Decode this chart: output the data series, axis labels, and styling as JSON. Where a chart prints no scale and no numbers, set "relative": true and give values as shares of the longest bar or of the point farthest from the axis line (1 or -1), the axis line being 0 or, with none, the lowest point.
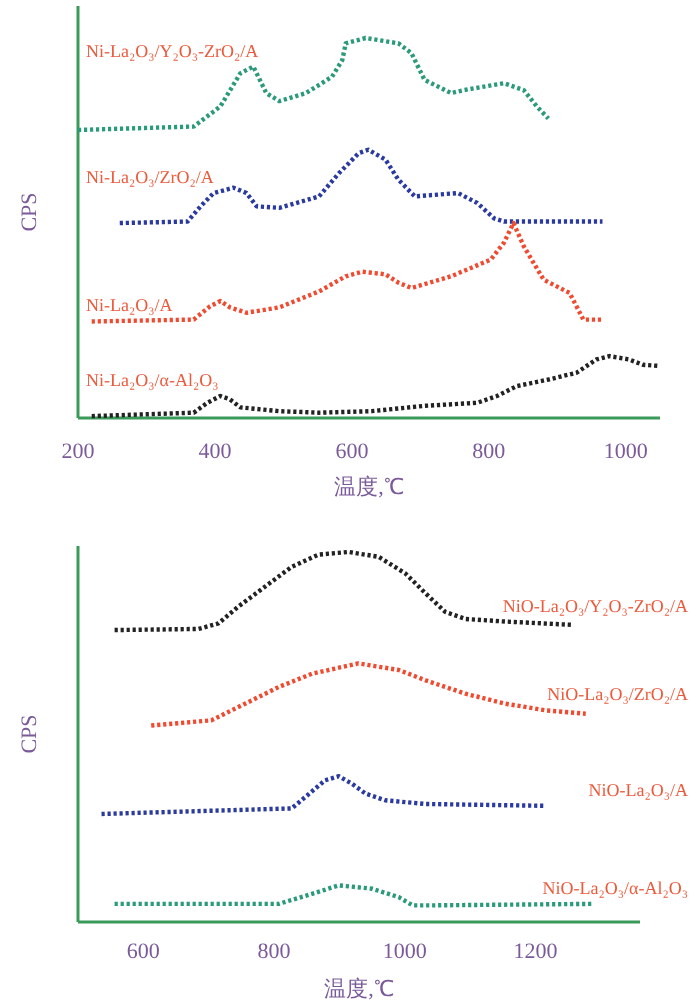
{
  "chart_data": [
    {
      "type": "line",
      "xlabel": "温度,℃",
      "ylabel": "CPS",
      "xlim": [
        200,
        1050
      ],
      "xticks": [
        200,
        400,
        600,
        800,
        1000
      ],
      "relative": true,
      "line_style": "dotted",
      "series": [
        {
          "name": "Ni-La₂O₃/Y₂O₃-ZrO₂/A",
          "color": "#2a9a7a",
          "x": [
            200,
            369,
            408,
            437,
            456,
            475,
            494,
            533,
            571,
            586,
            591,
            620,
            668,
            687,
            706,
            745,
            764,
            822,
            851,
            870,
            887
          ],
          "values": [
            0.758,
            0.767,
            0.82,
            0.907,
            0.925,
            0.855,
            0.834,
            0.855,
            0.898,
            0.942,
            0.986,
            1.0,
            0.986,
            0.96,
            0.89,
            0.855,
            0.863,
            0.881,
            0.863,
            0.82,
            0.788
          ]
        },
        {
          "name": "Ni-La₂O₃/ZrO₂/A",
          "color": "#2a3aa0",
          "x": [
            261,
            360,
            379,
            398,
            427,
            446,
            461,
            494,
            552,
            581,
            610,
            624,
            649,
            668,
            692,
            726,
            755,
            783,
            808,
            822,
            966
          ],
          "values": [
            0.513,
            0.517,
            0.557,
            0.592,
            0.606,
            0.592,
            0.557,
            0.553,
            0.583,
            0.644,
            0.697,
            0.706,
            0.68,
            0.627,
            0.583,
            0.588,
            0.592,
            0.566,
            0.525,
            0.517,
            0.517
          ]
        },
        {
          "name": "Ni-La₂O₃/A",
          "color": "#f04a30",
          "x": [
            220,
            369,
            393,
            408,
            422,
            446,
            494,
            552,
            591,
            615,
            649,
            668,
            687,
            745,
            803,
            822,
            836,
            851,
            880,
            918,
            938,
            966
          ],
          "values": [
            0.254,
            0.259,
            0.294,
            0.308,
            0.291,
            0.277,
            0.291,
            0.333,
            0.373,
            0.385,
            0.378,
            0.356,
            0.342,
            0.373,
            0.417,
            0.461,
            0.513,
            0.452,
            0.364,
            0.329,
            0.259,
            0.259
          ]
        },
        {
          "name": "Ni-La₂O₃/α-Al₂O₃",
          "color": "#222222",
          "x": [
            220,
            369,
            389,
            408,
            422,
            437,
            494,
            552,
            629,
            706,
            783,
            812,
            841,
            889,
            928,
            957,
            976,
            1005,
            1025,
            1049
          ],
          "values": [
            0.005,
            0.014,
            0.04,
            0.058,
            0.049,
            0.028,
            0.018,
            0.014,
            0.018,
            0.032,
            0.04,
            0.058,
            0.084,
            0.102,
            0.119,
            0.154,
            0.163,
            0.154,
            0.14,
            0.137
          ]
        }
      ]
    },
    {
      "type": "line",
      "xlabel": "温度,℃",
      "ylabel": "CPS",
      "xlim": [
        500,
        1360
      ],
      "xticks": [
        600,
        800,
        1000,
        1200
      ],
      "relative": true,
      "line_style": "dotted",
      "series": [
        {
          "name": "NiO-La₂O₃/Y₂O₃-ZrO₂/A",
          "color": "#222222",
          "x": [
            556,
            684,
            715,
            745,
            786,
            827,
            868,
            914,
            960,
            1001,
            1032,
            1062,
            1093,
            1154,
            1257
          ],
          "values": [
            0.789,
            0.792,
            0.807,
            0.852,
            0.906,
            0.96,
            0.993,
            1.0,
            0.987,
            0.942,
            0.888,
            0.838,
            0.819,
            0.812,
            0.803
          ]
        },
        {
          "name": "NiO-La₂O₃/ZrO₂/A",
          "color": "#f04a30",
          "x": [
            612,
            704,
            766,
            807,
            858,
            929,
            991,
            1032,
            1093,
            1154,
            1216,
            1277
          ],
          "values": [
            0.531,
            0.545,
            0.599,
            0.635,
            0.671,
            0.699,
            0.681,
            0.653,
            0.617,
            0.59,
            0.572,
            0.563
          ]
        },
        {
          "name": "NiO-La₂O₃/A",
          "color": "#2a3aa0",
          "x": [
            536,
            827,
            848,
            878,
            899,
            919,
            940,
            970,
            1032,
            1216
          ],
          "values": [
            0.292,
            0.307,
            0.338,
            0.383,
            0.394,
            0.374,
            0.347,
            0.329,
            0.319,
            0.314
          ]
        },
        {
          "name": "NiO-La₂O₃/α-Al₂O₃",
          "color": "#2a9a7a",
          "x": [
            556,
            807,
            858,
            899,
            950,
            991,
            1012,
            1042,
            1287
          ],
          "values": [
            0.049,
            0.049,
            0.076,
            0.099,
            0.09,
            0.067,
            0.045,
            0.045,
            0.049
          ]
        }
      ]
    }
  ]
}
